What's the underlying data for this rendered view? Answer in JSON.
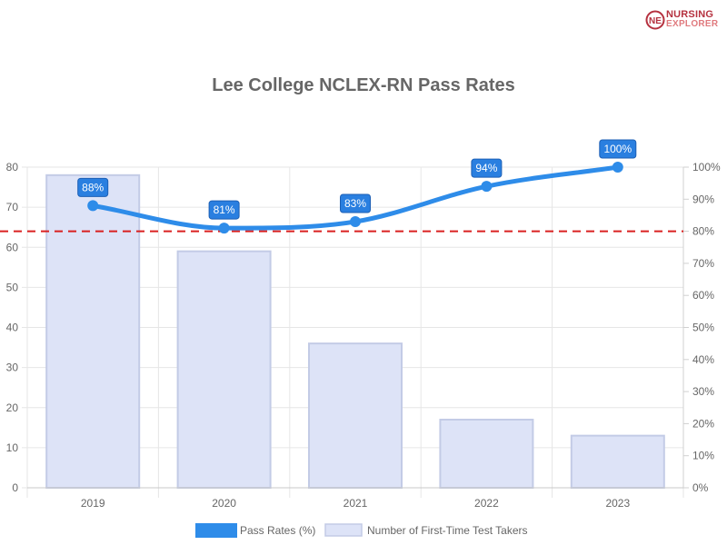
{
  "brand": {
    "line1": "NURSING",
    "line2": "EXPLORER",
    "mark_letters": "NE"
  },
  "colors": {
    "line": "#2e8ce9",
    "bar_fill": "#dde3f7",
    "bar_stroke": "#c3cbe6",
    "reference": "#d92020",
    "label_bg": "#2a7fe0",
    "label_border": "#1c5fb5",
    "brand": "#b5313f"
  },
  "chart_data": {
    "type": "bar+line",
    "title": "Lee College NCLEX-RN Pass Rates",
    "categories": [
      "2019",
      "2020",
      "2021",
      "2022",
      "2023"
    ],
    "series": [
      {
        "name": "Pass Rates (%)",
        "type": "line",
        "axis": "right",
        "values": [
          88,
          81,
          83,
          94,
          100
        ],
        "labels": [
          "88%",
          "81%",
          "83%",
          "94%",
          "100%"
        ]
      },
      {
        "name": "Number of First-Time Test Takers",
        "type": "bar",
        "axis": "left",
        "values": [
          78,
          59,
          36,
          17,
          13
        ]
      }
    ],
    "reference_line": {
      "axis": "right",
      "value": 80
    },
    "y_left": {
      "min": 0,
      "max": 80,
      "ticks": [
        "0",
        "10",
        "20",
        "30",
        "40",
        "50",
        "60",
        "70",
        "80"
      ]
    },
    "y_right": {
      "min": 0,
      "max": 100,
      "ticks": [
        "0%",
        "10%",
        "20%",
        "30%",
        "40%",
        "50%",
        "60%",
        "70%",
        "80%",
        "90%",
        "100%"
      ]
    },
    "grid": true,
    "legend_position": "bottom"
  }
}
